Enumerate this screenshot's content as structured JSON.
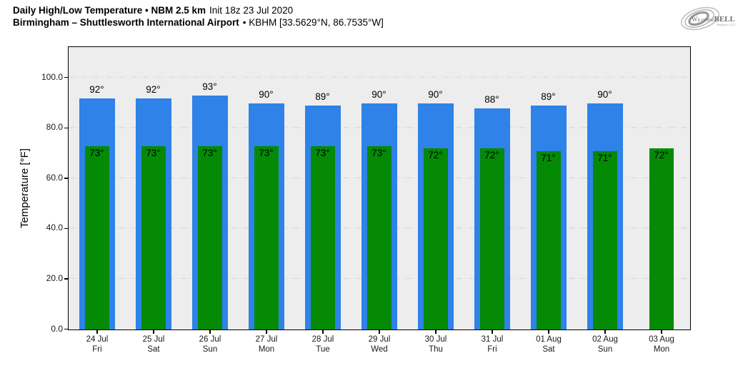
{
  "header": {
    "title_bold": "Daily High/Low Temperature • NBM 2.5 km",
    "title_regular": "Init 18z 23 Jul 2020",
    "subtitle_bold": "Birmingham – Shuttlesworth International Airport",
    "subtitle_regular": "• KBHM [33.5629°N, 86.7535°W]"
  },
  "logo": {
    "brand_weather": "Weather",
    "brand_bell": "BELL",
    "brand_sub": "Analytics LLC"
  },
  "chart_data": {
    "type": "bar",
    "title": "Daily High/Low Temperature • NBM 2.5 km Init 18z 23 Jul 2020",
    "subtitle": "Birmingham – Shuttlesworth International Airport • KBHM [33.5629°N, 86.7535°W]",
    "xlabel": "",
    "ylabel": "Temperature [°F]",
    "ylim": [
      0,
      112
    ],
    "yticks": [
      0,
      20,
      40,
      60,
      80,
      100
    ],
    "ytick_labels": [
      "0.0",
      "20.0",
      "40.0",
      "60.0",
      "80.0",
      "100.0"
    ],
    "grid": "horizontal dash-dot",
    "legend_position": "none",
    "categories": [
      {
        "date": "24 Jul",
        "day": "Fri"
      },
      {
        "date": "25 Jul",
        "day": "Sat"
      },
      {
        "date": "26 Jul",
        "day": "Sun"
      },
      {
        "date": "27 Jul",
        "day": "Mon"
      },
      {
        "date": "28 Jul",
        "day": "Tue"
      },
      {
        "date": "29 Jul",
        "day": "Wed"
      },
      {
        "date": "30 Jul",
        "day": "Thu"
      },
      {
        "date": "31 Jul",
        "day": "Fri"
      },
      {
        "date": "01 Aug",
        "day": "Sat"
      },
      {
        "date": "02 Aug",
        "day": "Sun"
      },
      {
        "date": "03 Aug",
        "day": "Mon"
      }
    ],
    "series": [
      {
        "name": "Daily High",
        "color": "#2e82e8",
        "values": [
          92,
          92,
          93,
          90,
          89,
          90,
          90,
          88,
          89,
          90,
          null
        ],
        "labels": [
          "92°",
          "92°",
          "93°",
          "90°",
          "89°",
          "90°",
          "90°",
          "88°",
          "89°",
          "90°",
          null
        ]
      },
      {
        "name": "Daily Low",
        "color": "#058a05",
        "values": [
          73,
          73,
          73,
          73,
          73,
          73,
          72,
          72,
          71,
          71,
          72
        ],
        "labels": [
          "73°",
          "73°",
          "73°",
          "73°",
          "73°",
          "73°",
          "72°",
          "72°",
          "71°",
          "71°",
          "72°"
        ]
      }
    ],
    "colors": {
      "plot_bg": "#ededed",
      "grid": "#d6d6d6",
      "axis": "#000000",
      "tick_text": "#1a1a1a"
    }
  }
}
